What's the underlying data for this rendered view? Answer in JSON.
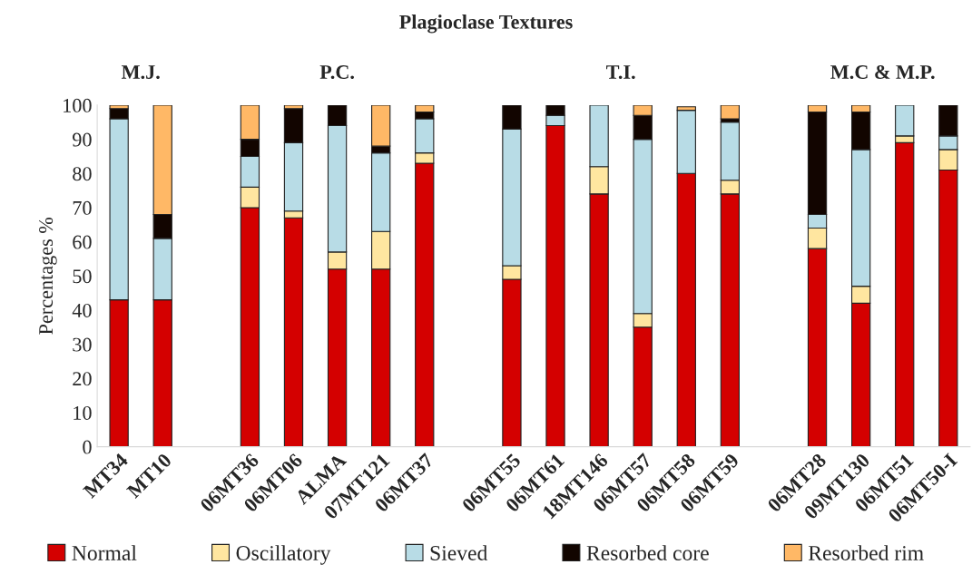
{
  "chart_data": {
    "type": "bar",
    "stacked": true,
    "title": "Plagioclase Textures",
    "ylabel": "Percentages %",
    "annotations": [
      "M.J.",
      "P.C.",
      "T.I.",
      "M.C & M.P."
    ],
    "categories": [
      "MT34",
      "MT10",
      null,
      "06MT36",
      "06MT06",
      "ALMA",
      "07MT121",
      "06MT37",
      null,
      "06MT55",
      "06MT61",
      "18MT146",
      "06MT57",
      "06MT58",
      "06MT59",
      null,
      "06MT28",
      "09MT130",
      "06MT51",
      "06MT50-I"
    ],
    "series": [
      {
        "name": "Normal",
        "color": "#d40000",
        "values": [
          43,
          43,
          null,
          70,
          67,
          52,
          52,
          83,
          null,
          49,
          94,
          74,
          35,
          80,
          74,
          null,
          58,
          42,
          89,
          81
        ]
      },
      {
        "name": "Oscillatory",
        "color": "#ffe6a0",
        "values": [
          0,
          0,
          null,
          6,
          2,
          5,
          11,
          3,
          null,
          4,
          0,
          8,
          4,
          0,
          4,
          null,
          6,
          5,
          2,
          6
        ]
      },
      {
        "name": "Sieved",
        "color": "#b8dce6",
        "values": [
          53,
          18,
          null,
          9,
          20,
          37,
          23,
          10,
          null,
          40,
          3,
          18,
          51,
          18.5,
          17,
          null,
          4,
          40,
          9,
          4
        ]
      },
      {
        "name": "Resorbed core",
        "color": "#120500",
        "values": [
          3,
          7,
          null,
          5,
          10,
          6,
          2,
          2,
          null,
          7,
          3,
          0,
          7,
          0,
          1,
          null,
          30,
          11,
          0,
          9
        ]
      },
      {
        "name": "Resorbed rim",
        "color": "#ffb866",
        "values": [
          1,
          32,
          null,
          10,
          1,
          0,
          12,
          2,
          null,
          0,
          0,
          0,
          3,
          1,
          4,
          null,
          2,
          2,
          0,
          0
        ]
      }
    ],
    "ylim": [
      0,
      100
    ],
    "yticks": [
      0,
      10,
      20,
      30,
      40,
      50,
      60,
      70,
      80,
      90,
      100
    ],
    "grid": false,
    "legend": "bottom"
  }
}
